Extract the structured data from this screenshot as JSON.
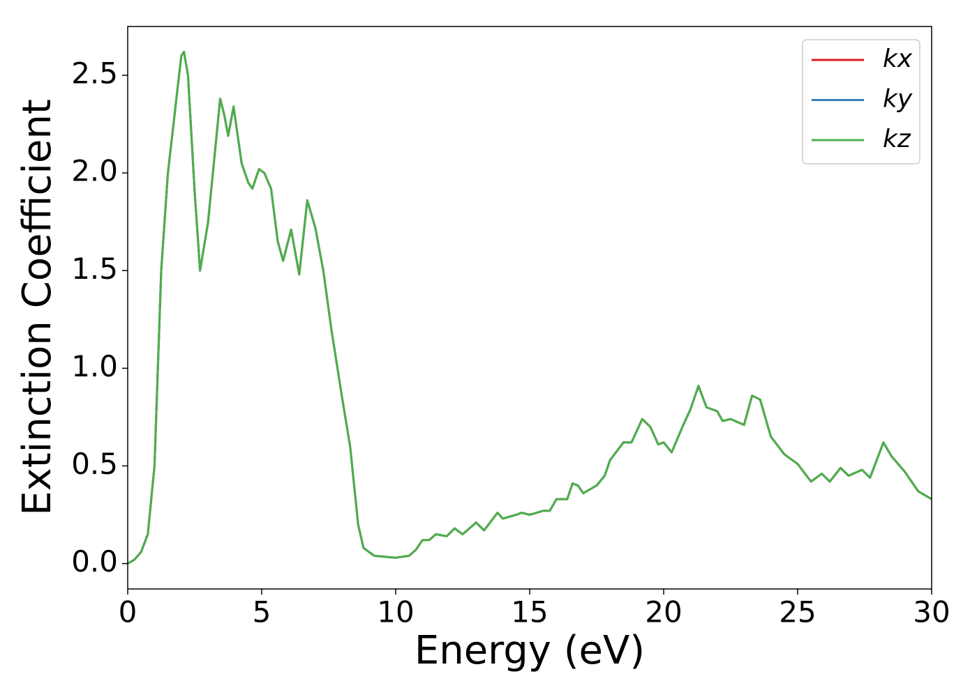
{
  "chart_data": {
    "type": "line",
    "xlabel": "Energy (eV)",
    "ylabel": "Extinction Coefficient",
    "x": [
      0,
      0.25,
      0.5,
      0.75,
      1.0,
      1.25,
      1.5,
      1.75,
      2.0,
      2.1,
      2.25,
      2.5,
      2.7,
      3.0,
      3.25,
      3.45,
      3.6,
      3.75,
      3.95,
      4.25,
      4.5,
      4.65,
      4.9,
      5.1,
      5.35,
      5.6,
      5.8,
      6.1,
      6.4,
      6.7,
      7.0,
      7.3,
      7.6,
      8.0,
      8.3,
      8.6,
      8.8,
      9.2,
      10.0,
      10.5,
      10.75,
      11.0,
      11.25,
      11.5,
      11.9,
      12.2,
      12.5,
      13.0,
      13.3,
      13.8,
      14.0,
      14.5,
      14.7,
      15.0,
      15.5,
      15.75,
      16.0,
      16.4,
      16.6,
      16.8,
      17.0,
      17.5,
      17.8,
      18.0,
      18.5,
      18.8,
      19.2,
      19.5,
      19.8,
      20.0,
      20.3,
      20.7,
      21.0,
      21.3,
      21.6,
      22.0,
      22.2,
      22.5,
      23.0,
      23.3,
      23.6,
      24.0,
      24.5,
      25.0,
      25.5,
      25.9,
      26.2,
      26.6,
      26.9,
      27.4,
      27.7,
      28.2,
      28.5,
      29.0,
      29.5,
      30.0
    ],
    "series": [
      {
        "name": "kx",
        "color": "#e41a1c",
        "values": [
          0.0,
          0.02,
          0.06,
          0.15,
          0.5,
          1.5,
          2.0,
          2.3,
          2.6,
          2.62,
          2.5,
          1.9,
          1.5,
          1.75,
          2.1,
          2.38,
          2.3,
          2.19,
          2.34,
          2.05,
          1.95,
          1.92,
          2.02,
          2.0,
          1.92,
          1.65,
          1.55,
          1.71,
          1.48,
          1.86,
          1.72,
          1.5,
          1.2,
          0.85,
          0.6,
          0.2,
          0.08,
          0.04,
          0.03,
          0.04,
          0.07,
          0.12,
          0.12,
          0.15,
          0.14,
          0.18,
          0.15,
          0.21,
          0.17,
          0.26,
          0.23,
          0.25,
          0.26,
          0.25,
          0.27,
          0.27,
          0.33,
          0.33,
          0.41,
          0.4,
          0.36,
          0.4,
          0.45,
          0.53,
          0.62,
          0.62,
          0.74,
          0.7,
          0.61,
          0.62,
          0.57,
          0.7,
          0.79,
          0.91,
          0.8,
          0.78,
          0.73,
          0.74,
          0.71,
          0.86,
          0.84,
          0.65,
          0.56,
          0.51,
          0.42,
          0.46,
          0.42,
          0.49,
          0.45,
          0.48,
          0.44,
          0.62,
          0.55,
          0.47,
          0.37,
          0.33
        ]
      },
      {
        "name": "ky",
        "color": "#377eb8",
        "values": [
          0.0,
          0.02,
          0.06,
          0.15,
          0.5,
          1.5,
          2.0,
          2.3,
          2.6,
          2.62,
          2.5,
          1.9,
          1.5,
          1.75,
          2.1,
          2.38,
          2.3,
          2.19,
          2.34,
          2.05,
          1.95,
          1.92,
          2.02,
          2.0,
          1.92,
          1.65,
          1.55,
          1.71,
          1.48,
          1.86,
          1.72,
          1.5,
          1.2,
          0.85,
          0.6,
          0.2,
          0.08,
          0.04,
          0.03,
          0.04,
          0.07,
          0.12,
          0.12,
          0.15,
          0.14,
          0.18,
          0.15,
          0.21,
          0.17,
          0.26,
          0.23,
          0.25,
          0.26,
          0.25,
          0.27,
          0.27,
          0.33,
          0.33,
          0.41,
          0.4,
          0.36,
          0.4,
          0.45,
          0.53,
          0.62,
          0.62,
          0.74,
          0.7,
          0.61,
          0.62,
          0.57,
          0.7,
          0.79,
          0.91,
          0.8,
          0.78,
          0.73,
          0.74,
          0.71,
          0.86,
          0.84,
          0.65,
          0.56,
          0.51,
          0.42,
          0.46,
          0.42,
          0.49,
          0.45,
          0.48,
          0.44,
          0.62,
          0.55,
          0.47,
          0.37,
          0.33
        ]
      },
      {
        "name": "kz",
        "color": "#4daf4a",
        "values": [
          0.0,
          0.02,
          0.06,
          0.15,
          0.5,
          1.5,
          2.0,
          2.3,
          2.6,
          2.62,
          2.5,
          1.9,
          1.5,
          1.75,
          2.1,
          2.38,
          2.3,
          2.19,
          2.34,
          2.05,
          1.95,
          1.92,
          2.02,
          2.0,
          1.92,
          1.65,
          1.55,
          1.71,
          1.48,
          1.86,
          1.72,
          1.5,
          1.2,
          0.85,
          0.6,
          0.2,
          0.08,
          0.04,
          0.03,
          0.04,
          0.07,
          0.12,
          0.12,
          0.15,
          0.14,
          0.18,
          0.15,
          0.21,
          0.17,
          0.26,
          0.23,
          0.25,
          0.26,
          0.25,
          0.27,
          0.27,
          0.33,
          0.33,
          0.41,
          0.4,
          0.36,
          0.4,
          0.45,
          0.53,
          0.62,
          0.62,
          0.74,
          0.7,
          0.61,
          0.62,
          0.57,
          0.7,
          0.79,
          0.91,
          0.8,
          0.78,
          0.73,
          0.74,
          0.71,
          0.86,
          0.84,
          0.65,
          0.56,
          0.51,
          0.42,
          0.46,
          0.42,
          0.49,
          0.45,
          0.48,
          0.44,
          0.62,
          0.55,
          0.47,
          0.37,
          0.33
        ]
      }
    ],
    "xlim": [
      0,
      30
    ],
    "xticks": [
      0,
      5,
      10,
      15,
      20,
      25,
      30
    ],
    "ylim": [
      -0.13,
      2.75
    ],
    "yticks": [
      {
        "value": 0,
        "label": "0.0"
      },
      0.5,
      {
        "value": 1,
        "label": "1.0"
      },
      1.5,
      {
        "value": 2,
        "label": "2.0"
      },
      2.5
    ],
    "legend": "upper right",
    "grid": false
  }
}
